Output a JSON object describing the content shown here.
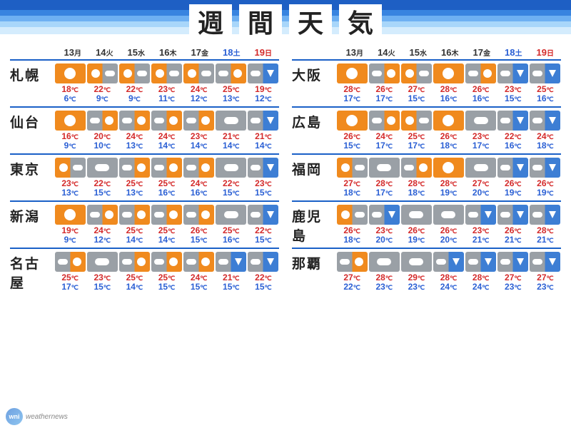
{
  "title_chars": [
    "週",
    "間",
    "天",
    "気"
  ],
  "days": [
    {
      "date": "13",
      "yobi": "月",
      "color": "#333"
    },
    {
      "date": "14",
      "yobi": "火",
      "color": "#333"
    },
    {
      "date": "15",
      "yobi": "水",
      "color": "#333"
    },
    {
      "date": "16",
      "yobi": "木",
      "color": "#333"
    },
    {
      "date": "17",
      "yobi": "金",
      "color": "#333"
    },
    {
      "date": "18",
      "yobi": "土",
      "color": "#2a5fd4"
    },
    {
      "date": "19",
      "yobi": "日",
      "color": "#d42a2a"
    }
  ],
  "icon_classes": {
    "sunny": "sun-full",
    "cloudy": "cloud-grey",
    "sun-cloud": "sun-cloud",
    "cloud-sun": "cloud-sun",
    "cloud-rain": "cloud-rain",
    "sun-rain": "sun-rain"
  },
  "colors": {
    "hi": "#d42a2a",
    "lo": "#2a5fd4",
    "border": "#1a60c7",
    "bands": [
      "#1e5fc4",
      "#3884e0",
      "#6eb0f2",
      "#a8d6fa",
      "#d4ecfd"
    ],
    "sun_bg": "#f08a1e",
    "cloud_bg": "#9aa0a6",
    "rain_bg": "#3d7ed4"
  },
  "left_cities": [
    {
      "name": "札幌",
      "days": [
        {
          "w": "sunny",
          "hi": 18,
          "lo": 6
        },
        {
          "w": "sun-cloud",
          "hi": 22,
          "lo": 9
        },
        {
          "w": "sun-cloud",
          "hi": 22,
          "lo": 9
        },
        {
          "w": "sun-cloud",
          "hi": 23,
          "lo": 11
        },
        {
          "w": "sun-cloud",
          "hi": 24,
          "lo": 12
        },
        {
          "w": "cloud-sun",
          "hi": 25,
          "lo": 13
        },
        {
          "w": "cloud-rain",
          "hi": 19,
          "lo": 12
        }
      ]
    },
    {
      "name": "仙台",
      "days": [
        {
          "w": "sunny",
          "hi": 16,
          "lo": 9
        },
        {
          "w": "cloud-sun",
          "hi": 20,
          "lo": 10
        },
        {
          "w": "cloud-sun",
          "hi": 24,
          "lo": 13
        },
        {
          "w": "cloud-sun",
          "hi": 24,
          "lo": 14
        },
        {
          "w": "cloud-sun",
          "hi": 23,
          "lo": 14
        },
        {
          "w": "cloudy",
          "hi": 21,
          "lo": 14
        },
        {
          "w": "cloud-rain",
          "hi": 21,
          "lo": 14
        }
      ]
    },
    {
      "name": "東京",
      "days": [
        {
          "w": "sun-cloud",
          "hi": 23,
          "lo": 13
        },
        {
          "w": "cloudy",
          "hi": 22,
          "lo": 15
        },
        {
          "w": "cloud-sun",
          "hi": 25,
          "lo": 13
        },
        {
          "w": "cloud-sun",
          "hi": 25,
          "lo": 16
        },
        {
          "w": "cloud-sun",
          "hi": 24,
          "lo": 16
        },
        {
          "w": "cloudy",
          "hi": 22,
          "lo": 15
        },
        {
          "w": "cloud-rain",
          "hi": 23,
          "lo": 15
        }
      ]
    },
    {
      "name": "新潟",
      "days": [
        {
          "w": "sunny",
          "hi": 19,
          "lo": 9
        },
        {
          "w": "cloud-sun",
          "hi": 24,
          "lo": 12
        },
        {
          "w": "cloud-sun",
          "hi": 25,
          "lo": 14
        },
        {
          "w": "cloud-sun",
          "hi": 25,
          "lo": 14
        },
        {
          "w": "cloud-sun",
          "hi": 26,
          "lo": 15
        },
        {
          "w": "cloudy",
          "hi": 25,
          "lo": 16
        },
        {
          "w": "cloud-rain",
          "hi": 22,
          "lo": 15
        }
      ]
    },
    {
      "name": "名古屋",
      "days": [
        {
          "w": "cloud-sun",
          "hi": 25,
          "lo": 17
        },
        {
          "w": "cloudy",
          "hi": 23,
          "lo": 15
        },
        {
          "w": "cloud-sun",
          "hi": 25,
          "lo": 14
        },
        {
          "w": "cloud-sun",
          "hi": 25,
          "lo": 15
        },
        {
          "w": "cloud-sun",
          "hi": 24,
          "lo": 15
        },
        {
          "w": "cloud-rain",
          "hi": 21,
          "lo": 15
        },
        {
          "w": "cloud-rain",
          "hi": 22,
          "lo": 15
        }
      ]
    }
  ],
  "right_cities": [
    {
      "name": "大阪",
      "days": [
        {
          "w": "sunny",
          "hi": 28,
          "lo": 17
        },
        {
          "w": "cloud-sun",
          "hi": 26,
          "lo": 17
        },
        {
          "w": "sun-cloud",
          "hi": 27,
          "lo": 15
        },
        {
          "w": "sunny",
          "hi": 28,
          "lo": 16
        },
        {
          "w": "cloud-sun",
          "hi": 26,
          "lo": 16
        },
        {
          "w": "cloud-rain",
          "hi": 23,
          "lo": 15
        },
        {
          "w": "cloud-rain",
          "hi": 25,
          "lo": 16
        }
      ]
    },
    {
      "name": "広島",
      "days": [
        {
          "w": "sunny",
          "hi": 26,
          "lo": 15
        },
        {
          "w": "cloud-sun",
          "hi": 24,
          "lo": 17
        },
        {
          "w": "sun-cloud",
          "hi": 25,
          "lo": 17
        },
        {
          "w": "sunny",
          "hi": 26,
          "lo": 18
        },
        {
          "w": "cloudy",
          "hi": 23,
          "lo": 17
        },
        {
          "w": "cloud-rain",
          "hi": 22,
          "lo": 16
        },
        {
          "w": "cloud-rain",
          "hi": 24,
          "lo": 18
        }
      ]
    },
    {
      "name": "福岡",
      "days": [
        {
          "w": "sun-cloud",
          "hi": 27,
          "lo": 18
        },
        {
          "w": "cloudy",
          "hi": 28,
          "lo": 17
        },
        {
          "w": "cloud-sun",
          "hi": 28,
          "lo": 18
        },
        {
          "w": "sunny",
          "hi": 28,
          "lo": 19
        },
        {
          "w": "cloudy",
          "hi": 27,
          "lo": 20
        },
        {
          "w": "cloud-rain",
          "hi": 26,
          "lo": 19
        },
        {
          "w": "cloud-rain",
          "hi": 26,
          "lo": 19
        }
      ]
    },
    {
      "name": "鹿児島",
      "days": [
        {
          "w": "sun-cloud",
          "hi": 26,
          "lo": 18
        },
        {
          "w": "cloud-rain",
          "hi": 23,
          "lo": 20
        },
        {
          "w": "cloudy",
          "hi": 26,
          "lo": 19
        },
        {
          "w": "cloudy",
          "hi": 26,
          "lo": 20
        },
        {
          "w": "cloud-rain",
          "hi": 23,
          "lo": 21
        },
        {
          "w": "cloud-rain",
          "hi": 26,
          "lo": 21
        },
        {
          "w": "cloud-rain",
          "hi": 28,
          "lo": 21
        }
      ]
    },
    {
      "name": "那覇",
      "days": [
        {
          "w": "cloud-sun",
          "hi": 27,
          "lo": 22
        },
        {
          "w": "cloudy",
          "hi": 28,
          "lo": 23
        },
        {
          "w": "cloudy",
          "hi": 29,
          "lo": 23
        },
        {
          "w": "cloud-rain",
          "hi": 28,
          "lo": 24
        },
        {
          "w": "cloud-rain",
          "hi": 28,
          "lo": 24
        },
        {
          "w": "cloud-rain",
          "hi": 27,
          "lo": 23
        },
        {
          "w": "cloud-rain",
          "hi": 27,
          "lo": 23
        }
      ]
    }
  ],
  "branding": "weathernews"
}
